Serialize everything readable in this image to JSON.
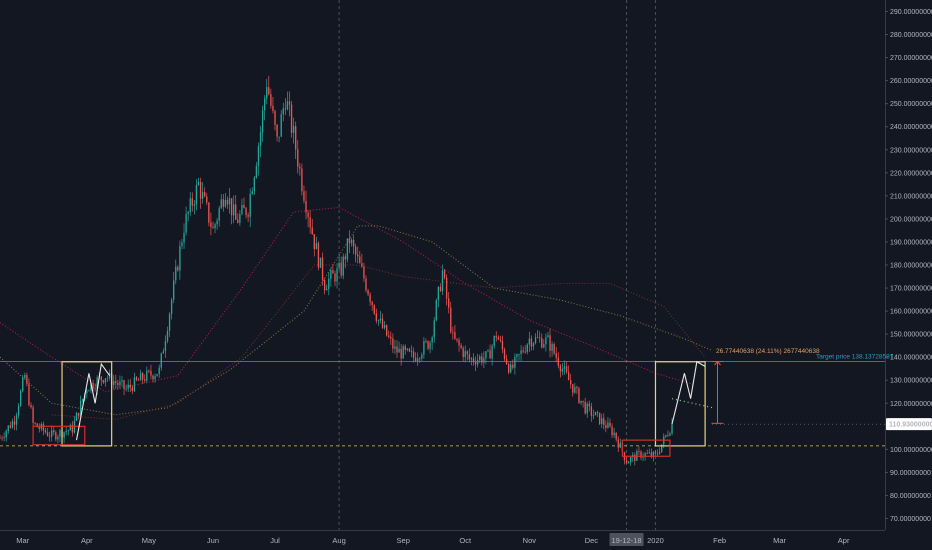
{
  "chart_data": {
    "type": "candlestick",
    "y_axis": {
      "ylim": [
        65,
        295
      ],
      "ticks": [
        {
          "value": 70,
          "label": "70.00000000"
        },
        {
          "value": 80,
          "label": "80.00000000"
        },
        {
          "value": 90,
          "label": "90.00000000"
        },
        {
          "value": 100,
          "label": "100.00000000"
        },
        {
          "value": 120,
          "label": "120.00000000"
        },
        {
          "value": 130,
          "label": "130.00000000"
        },
        {
          "value": 140,
          "label": "140.00000000"
        },
        {
          "value": 150,
          "label": "150.00000000"
        },
        {
          "value": 160,
          "label": "160.00000000"
        },
        {
          "value": 170,
          "label": "170.00000000"
        },
        {
          "value": 180,
          "label": "180.00000000"
        },
        {
          "value": 190,
          "label": "190.00000000"
        },
        {
          "value": 200,
          "label": "200.00000000"
        },
        {
          "value": 210,
          "label": "210.00000000"
        },
        {
          "value": 220,
          "label": "220.00000000"
        },
        {
          "value": 230,
          "label": "230.00000000"
        },
        {
          "value": 240,
          "label": "240.00000000"
        },
        {
          "value": 250,
          "label": "250.00000000"
        },
        {
          "value": 260,
          "label": "260.00000000"
        },
        {
          "value": 270,
          "label": "270.00000000"
        },
        {
          "value": 280,
          "label": "280.00000000"
        },
        {
          "value": 290,
          "label": "290.00000000"
        }
      ]
    },
    "x_axis": {
      "xlim": [
        "2019-02-18",
        "2020-04-21"
      ],
      "labels": [
        {
          "date": "2019-03-01",
          "label": "Mar"
        },
        {
          "date": "2019-04-01",
          "label": "Apr"
        },
        {
          "date": "2019-05-01",
          "label": "May"
        },
        {
          "date": "2019-06-01",
          "label": "Jun"
        },
        {
          "date": "2019-07-01",
          "label": "Jul"
        },
        {
          "date": "2019-08-01",
          "label": "Aug"
        },
        {
          "date": "2019-09-01",
          "label": "Sep"
        },
        {
          "date": "2019-10-01",
          "label": "Oct"
        },
        {
          "date": "2019-11-01",
          "label": "Nov"
        },
        {
          "date": "2019-12-01",
          "label": "Dec"
        },
        {
          "date": "2020-01-01",
          "label": "2020"
        },
        {
          "date": "2020-02-01",
          "label": "Feb"
        },
        {
          "date": "2020-03-01",
          "label": "Mar"
        },
        {
          "date": "2020-04-01",
          "label": "Apr"
        }
      ],
      "highlighted_date": {
        "date": "2019-12-18",
        "label": "19-12-18"
      }
    },
    "price_path": [
      [
        "2019-02-18",
        105
      ],
      [
        "2019-02-25",
        113
      ],
      [
        "2019-03-02",
        132
      ],
      [
        "2019-03-06",
        111
      ],
      [
        "2019-03-15",
        106
      ],
      [
        "2019-03-25",
        109
      ],
      [
        "2019-04-01",
        127
      ],
      [
        "2019-04-10",
        132
      ],
      [
        "2019-04-20",
        126
      ],
      [
        "2019-04-28",
        131
      ],
      [
        "2019-05-06",
        134
      ],
      [
        "2019-05-12",
        165
      ],
      [
        "2019-05-18",
        197
      ],
      [
        "2019-05-25",
        215
      ],
      [
        "2019-06-01",
        195
      ],
      [
        "2019-06-07",
        213
      ],
      [
        "2019-06-12",
        199
      ],
      [
        "2019-06-18",
        205
      ],
      [
        "2019-06-24",
        238
      ],
      [
        "2019-06-27",
        260
      ],
      [
        "2019-07-02",
        233
      ],
      [
        "2019-07-06",
        253
      ],
      [
        "2019-07-10",
        236
      ],
      [
        "2019-07-14",
        216
      ],
      [
        "2019-07-20",
        190
      ],
      [
        "2019-07-25",
        172
      ],
      [
        "2019-08-02",
        178
      ],
      [
        "2019-08-06",
        191
      ],
      [
        "2019-08-12",
        177
      ],
      [
        "2019-08-20",
        156
      ],
      [
        "2019-08-28",
        143
      ],
      [
        "2019-09-06",
        140
      ],
      [
        "2019-09-14",
        147
      ],
      [
        "2019-09-20",
        177
      ],
      [
        "2019-09-25",
        148
      ],
      [
        "2019-10-03",
        139
      ],
      [
        "2019-10-12",
        140
      ],
      [
        "2019-10-16",
        150
      ],
      [
        "2019-10-23",
        134
      ],
      [
        "2019-11-01",
        148
      ],
      [
        "2019-11-10",
        147
      ],
      [
        "2019-11-20",
        130
      ],
      [
        "2019-11-28",
        118
      ],
      [
        "2019-12-05",
        113
      ],
      [
        "2019-12-12",
        107
      ],
      [
        "2019-12-18",
        95
      ],
      [
        "2019-12-25",
        98
      ],
      [
        "2020-01-01",
        97
      ],
      [
        "2020-01-05",
        104
      ],
      [
        "2020-01-09",
        111
      ]
    ],
    "price_levels": [
      {
        "name": "Target price",
        "value": 138.13728587,
        "label": "Target price 138.13728587",
        "color": "#2a9cc9"
      },
      {
        "name": "current",
        "value": 110.93,
        "label": "110.93000000",
        "color": "#ffffff"
      },
      {
        "name": "support",
        "value": 101.5,
        "color": "#e0c060"
      }
    ],
    "measure_label": "26.77440638 (24.11%) 2677440638",
    "moving_averages": [
      {
        "color": "#c2185b",
        "style": "dotted",
        "points": [
          [
            "2019-02-18",
            155
          ],
          [
            "2019-03-15",
            140
          ],
          [
            "2019-04-10",
            125
          ],
          [
            "2019-05-15",
            132
          ],
          [
            "2019-06-15",
            170
          ],
          [
            "2019-07-10",
            203
          ],
          [
            "2019-08-01",
            205
          ],
          [
            "2019-09-01",
            190
          ],
          [
            "2019-10-01",
            172
          ],
          [
            "2019-11-01",
            156
          ],
          [
            "2019-12-01",
            145
          ],
          [
            "2020-01-01",
            133
          ],
          [
            "2020-01-20",
            128
          ]
        ]
      },
      {
        "color": "#8c7a3c",
        "style": "dotted",
        "points": [
          [
            "2019-02-18",
            140
          ],
          [
            "2019-03-15",
            120
          ],
          [
            "2019-04-15",
            115
          ],
          [
            "2019-05-10",
            118
          ],
          [
            "2019-06-10",
            135
          ],
          [
            "2019-07-15",
            160
          ],
          [
            "2019-08-10",
            197
          ],
          [
            "2019-08-20",
            197
          ],
          [
            "2019-09-15",
            190
          ],
          [
            "2019-10-15",
            170
          ],
          [
            "2019-11-15",
            165
          ],
          [
            "2019-12-15",
            158
          ],
          [
            "2020-01-15",
            148
          ],
          [
            "2020-01-28",
            143
          ]
        ]
      },
      {
        "color": "#7a3030",
        "style": "dotted",
        "points": [
          [
            "2019-03-15",
            115
          ],
          [
            "2019-04-15",
            113
          ],
          [
            "2019-05-15",
            120
          ],
          [
            "2019-06-15",
            140
          ],
          [
            "2019-07-20",
            180
          ],
          [
            "2019-08-10",
            180
          ],
          [
            "2019-09-01",
            175
          ],
          [
            "2019-10-15",
            170
          ],
          [
            "2019-11-15",
            172
          ],
          [
            "2019-12-10",
            172
          ],
          [
            "2020-01-05",
            162
          ],
          [
            "2020-01-25",
            140
          ]
        ]
      }
    ],
    "annotations": [
      {
        "type": "rect",
        "color": "#e8d27c",
        "x1": "2019-03-20",
        "x2": "2019-04-13",
        "y1": 101.5,
        "y2": 138
      },
      {
        "type": "rect",
        "color": "#d32f2f",
        "x1": "2019-03-06",
        "x2": "2019-03-31",
        "y1": 102,
        "y2": 110
      },
      {
        "type": "rect",
        "color": "#e8d27c",
        "x1": "2020-01-01",
        "x2": "2020-01-25",
        "y1": 101.5,
        "y2": 138
      },
      {
        "type": "rect",
        "color": "#d32f2f",
        "x1": "2019-12-16",
        "x2": "2020-01-08",
        "y1": 97,
        "y2": 104
      }
    ]
  }
}
